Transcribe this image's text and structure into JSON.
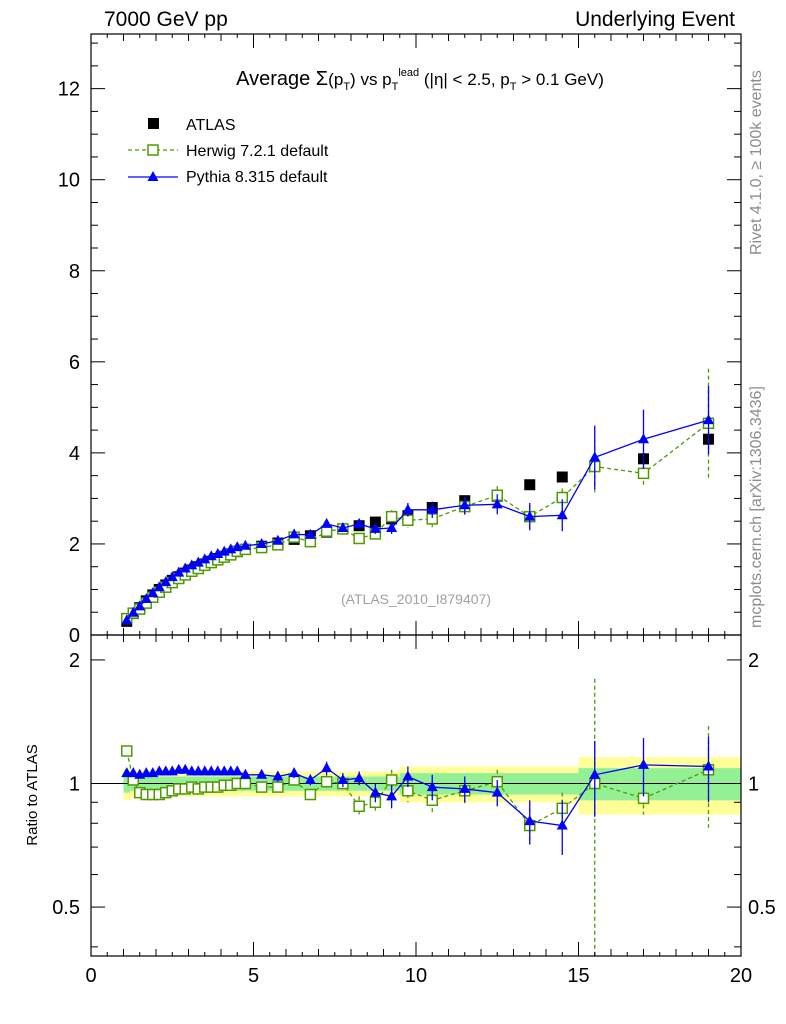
{
  "header": {
    "left": "7000 GeV pp",
    "right": "Underlying Event"
  },
  "side_labels": {
    "rivet": "Rivet 4.1.0, ≥ 100k events",
    "mcplots": "mcplots.cern.ch [arXiv:1306.3436]"
  },
  "chart_data": {
    "type": "line",
    "title_parts": {
      "pre": "Average ",
      "sigma": "Σ",
      "p": "p",
      "T": "T",
      "vs": " vs p",
      "lead": "lead",
      "cut1": " (|η| < 2.5, p",
      "cut2": " > 0.1 GeV)"
    },
    "analysis_label": "(ATLAS_2010_I879407)",
    "ratio_ylabel": "Ratio to ATLAS",
    "xlim": [
      0,
      20
    ],
    "ylim_main": [
      0,
      13.2
    ],
    "ylim_ratio": [
      0.38,
      2.3
    ],
    "x_ticks": [
      0,
      5,
      10,
      15,
      20
    ],
    "y_ticks_main": [
      0,
      2,
      4,
      6,
      8,
      10,
      12
    ],
    "y_ticks_ratio": [
      0.5,
      1,
      2
    ],
    "x_tick_labels": [
      "0",
      "5",
      "10",
      "15",
      "20"
    ],
    "y_tick_labels_main": [
      "0",
      "2",
      "4",
      "6",
      "8",
      "10",
      "12"
    ],
    "y_tick_labels_ratio": [
      "0.5",
      "1",
      "2"
    ],
    "x": [
      1.1,
      1.3,
      1.5,
      1.7,
      1.9,
      2.1,
      2.3,
      2.5,
      2.7,
      2.9,
      3.1,
      3.3,
      3.5,
      3.7,
      3.9,
      4.1,
      4.3,
      4.5,
      4.75,
      5.25,
      5.75,
      6.25,
      6.75,
      7.25,
      7.75,
      8.25,
      8.75,
      9.25,
      9.75,
      10.5,
      11.5,
      12.5,
      13.5,
      14.5,
      15.5,
      17.0,
      19.0
    ],
    "series": [
      {
        "name": "ATLAS",
        "color": "#000000",
        "values": [
          0.3,
          0.47,
          0.6,
          0.75,
          0.88,
          1.0,
          1.1,
          1.2,
          1.28,
          1.36,
          1.43,
          1.5,
          1.56,
          1.62,
          1.68,
          1.73,
          1.78,
          1.83,
          1.88,
          1.95,
          2.02,
          2.1,
          2.18,
          2.26,
          2.33,
          2.4,
          2.48,
          2.55,
          2.62,
          2.8,
          2.95,
          3.05,
          3.3,
          3.47,
          3.7,
          3.87,
          4.3
        ],
        "ratio_band_stat": [
          0.05,
          0.04,
          0.04,
          0.04,
          0.04,
          0.04,
          0.04,
          0.04,
          0.04,
          0.04,
          0.04,
          0.04,
          0.04,
          0.04,
          0.04,
          0.04,
          0.04,
          0.04,
          0.04,
          0.04,
          0.04,
          0.04,
          0.04,
          0.04,
          0.04,
          0.04,
          0.04,
          0.04,
          0.06,
          0.06,
          0.06,
          0.06,
          0.06,
          0.06,
          0.09,
          0.09,
          0.09
        ],
        "ratio_band_total": [
          0.09,
          0.08,
          0.07,
          0.07,
          0.07,
          0.07,
          0.07,
          0.07,
          0.07,
          0.07,
          0.07,
          0.07,
          0.07,
          0.07,
          0.07,
          0.07,
          0.07,
          0.07,
          0.07,
          0.07,
          0.07,
          0.07,
          0.07,
          0.07,
          0.07,
          0.07,
          0.07,
          0.07,
          0.1,
          0.1,
          0.1,
          0.1,
          0.1,
          0.1,
          0.16,
          0.16,
          0.16
        ]
      },
      {
        "name": "Herwig 7.2.1 default",
        "color": "#4f9a00",
        "values": [
          0.36,
          0.48,
          0.57,
          0.7,
          0.83,
          0.94,
          1.05,
          1.15,
          1.24,
          1.32,
          1.4,
          1.46,
          1.53,
          1.59,
          1.65,
          1.71,
          1.76,
          1.84,
          1.88,
          1.92,
          1.98,
          2.15,
          2.05,
          2.28,
          2.33,
          2.12,
          2.22,
          2.6,
          2.52,
          2.55,
          2.82,
          3.07,
          2.6,
          3.02,
          3.7,
          3.55,
          4.65
        ],
        "errors": [
          0.03,
          0.02,
          0.02,
          0.02,
          0.02,
          0.02,
          0.02,
          0.02,
          0.02,
          0.02,
          0.02,
          0.02,
          0.02,
          0.02,
          0.02,
          0.02,
          0.02,
          0.03,
          0.03,
          0.04,
          0.05,
          0.06,
          0.07,
          0.08,
          0.09,
          0.1,
          0.11,
          0.14,
          0.16,
          0.18,
          0.18,
          0.2,
          0.25,
          0.2,
          0.6,
          0.3,
          1.2
        ],
        "ratio": [
          1.2,
          1.02,
          0.95,
          0.94,
          0.94,
          0.94,
          0.95,
          0.96,
          0.97,
          0.97,
          0.98,
          0.97,
          0.98,
          0.98,
          0.98,
          0.99,
          0.99,
          1.0,
          1.0,
          0.98,
          0.98,
          1.02,
          0.94,
          1.01,
          1.0,
          0.88,
          0.9,
          1.02,
          0.96,
          0.91,
          0.96,
          1.01,
          0.79,
          0.87,
          1.0,
          0.92,
          1.08
        ],
        "ratio_err": [
          0.02,
          0.02,
          0.02,
          0.02,
          0.02,
          0.02,
          0.02,
          0.02,
          0.02,
          0.02,
          0.02,
          0.02,
          0.02,
          0.02,
          0.02,
          0.02,
          0.02,
          0.02,
          0.02,
          0.02,
          0.02,
          0.03,
          0.03,
          0.04,
          0.04,
          0.05,
          0.05,
          0.06,
          0.06,
          0.07,
          0.07,
          0.07,
          0.08,
          0.08,
          0.8,
          0.08,
          0.3
        ]
      },
      {
        "name": "Pythia 8.315 default",
        "color": "#0000ff",
        "values": [
          0.32,
          0.49,
          0.63,
          0.79,
          0.92,
          1.05,
          1.16,
          1.27,
          1.37,
          1.46,
          1.53,
          1.59,
          1.66,
          1.73,
          1.78,
          1.83,
          1.88,
          1.93,
          1.96,
          2.0,
          2.07,
          2.21,
          2.2,
          2.44,
          2.35,
          2.44,
          2.33,
          2.35,
          2.75,
          2.75,
          2.85,
          2.87,
          2.6,
          2.63,
          3.9,
          4.3,
          4.72
        ],
        "errors": [
          0.02,
          0.02,
          0.02,
          0.02,
          0.02,
          0.02,
          0.02,
          0.02,
          0.02,
          0.02,
          0.02,
          0.02,
          0.02,
          0.02,
          0.02,
          0.02,
          0.02,
          0.02,
          0.03,
          0.04,
          0.05,
          0.06,
          0.07,
          0.08,
          0.09,
          0.1,
          0.11,
          0.13,
          0.15,
          0.18,
          0.2,
          0.22,
          0.3,
          0.35,
          0.7,
          0.65,
          0.75
        ],
        "ratio": [
          1.06,
          1.06,
          1.05,
          1.06,
          1.06,
          1.07,
          1.07,
          1.07,
          1.08,
          1.08,
          1.07,
          1.07,
          1.07,
          1.07,
          1.07,
          1.07,
          1.07,
          1.07,
          1.05,
          1.05,
          1.04,
          1.06,
          1.02,
          1.09,
          1.02,
          1.03,
          0.95,
          0.93,
          1.04,
          0.98,
          0.97,
          0.95,
          0.81,
          0.79,
          1.05,
          1.11,
          1.1
        ],
        "ratio_err": [
          0.02,
          0.02,
          0.02,
          0.02,
          0.02,
          0.02,
          0.02,
          0.02,
          0.02,
          0.02,
          0.02,
          0.02,
          0.02,
          0.02,
          0.02,
          0.02,
          0.02,
          0.02,
          0.02,
          0.02,
          0.03,
          0.03,
          0.03,
          0.04,
          0.04,
          0.04,
          0.05,
          0.06,
          0.06,
          0.07,
          0.07,
          0.07,
          0.1,
          0.12,
          0.22,
          0.18,
          0.2
        ]
      }
    ]
  }
}
